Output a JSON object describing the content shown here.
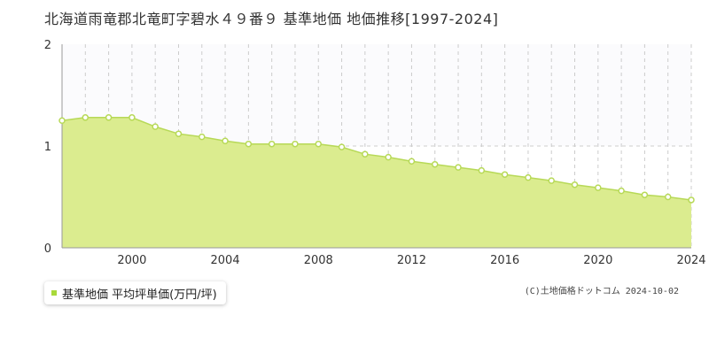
{
  "colors": {
    "area_fill": "#dbec8f",
    "line": "#b7d957",
    "marker_fill": "#ffffff",
    "marker_stroke": "#b7d957",
    "grid": "#cccccc",
    "axis_text": "#333333",
    "legend_swatch": "#a8d93a"
  },
  "legend": {
    "label": "基準地価 平均坪単価(万円/坪)"
  },
  "copyright": "(C)土地価格ドットコム 2024-10-02",
  "chart_data": {
    "type": "area",
    "title": "北海道雨竜郡北竜町字碧水４９番９ 基準地価 地価推移[1997-2024]",
    "xlabel": "",
    "ylabel": "",
    "xlim": [
      1997,
      2024
    ],
    "ylim": [
      0,
      2
    ],
    "x_ticks": [
      "2000",
      "2004",
      "2008",
      "2012",
      "2016",
      "2020",
      "2024"
    ],
    "y_ticks": [
      "0",
      "1",
      "2"
    ],
    "grid": true,
    "legend_position": "bottom-left",
    "series": [
      {
        "name": "基準地価 平均坪単価(万円/坪)",
        "x": [
          1997,
          1998,
          1999,
          2000,
          2001,
          2002,
          2003,
          2004,
          2005,
          2006,
          2007,
          2008,
          2009,
          2010,
          2011,
          2012,
          2013,
          2014,
          2015,
          2016,
          2017,
          2018,
          2019,
          2020,
          2021,
          2022,
          2023,
          2024
        ],
        "y": [
          1.25,
          1.28,
          1.28,
          1.28,
          1.19,
          1.12,
          1.09,
          1.05,
          1.02,
          1.02,
          1.02,
          1.02,
          0.99,
          0.92,
          0.89,
          0.85,
          0.82,
          0.79,
          0.76,
          0.72,
          0.69,
          0.66,
          0.62,
          0.59,
          0.56,
          0.52,
          0.5,
          0.47
        ]
      }
    ]
  }
}
